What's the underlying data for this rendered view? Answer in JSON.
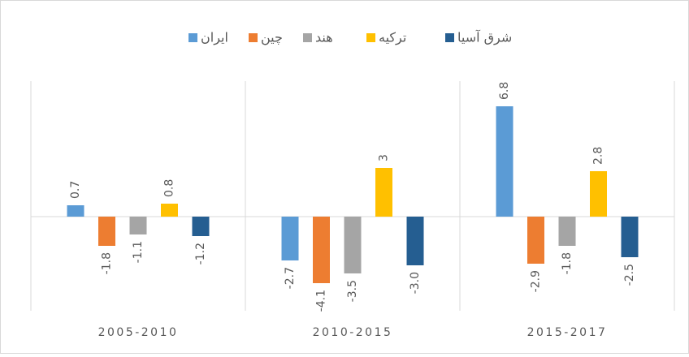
{
  "chart_data": {
    "type": "bar",
    "categories": [
      "2005-2010",
      "2010-2015",
      "2015-2017"
    ],
    "series": [
      {
        "name": "ایران",
        "color": "#5b9bd5",
        "values": [
          0.7,
          -2.7,
          6.8
        ]
      },
      {
        "name": "چین",
        "color": "#ed7d31",
        "values": [
          -1.8,
          -4.1,
          -2.9
        ]
      },
      {
        "name": "هند",
        "color": "#a5a5a5",
        "values": [
          -1.1,
          -3.5,
          -1.8
        ]
      },
      {
        "name": "ترکیه",
        "color": "#ffc000",
        "values": [
          0.8,
          3,
          2.8
        ]
      },
      {
        "name": "شرق آسیا",
        "color": "#255e91",
        "values": [
          -1.2,
          -3.0,
          -2.5
        ],
        "value_labels": [
          "-1.2",
          "-3.0",
          "-2.5"
        ]
      }
    ],
    "ylim": [
      -5.8,
      8.1
    ]
  }
}
